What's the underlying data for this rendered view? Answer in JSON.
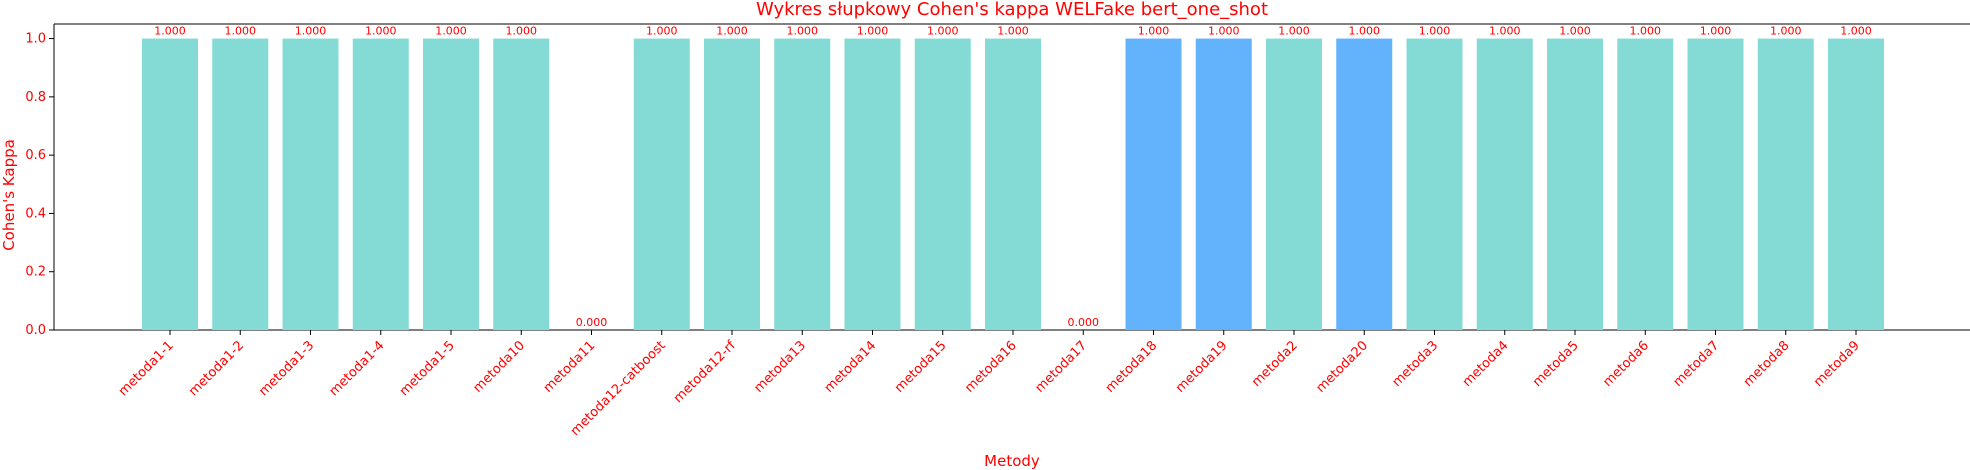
{
  "chart_data": {
    "type": "bar",
    "title": "Wykres słupkowy Cohen's kappa WELFake bert_one_shot",
    "xlabel": "Metody",
    "ylabel": "Cohen's Kappa",
    "ylim": [
      0,
      1.05
    ],
    "yticks": [
      0.0,
      0.2,
      0.4,
      0.6,
      0.8,
      1.0
    ],
    "ytick_labels": [
      "0.0",
      "0.2",
      "0.4",
      "0.6",
      "0.8",
      "1.0"
    ],
    "grid": false,
    "categories": [
      "metoda1-1",
      "metoda1-2",
      "metoda1-3",
      "metoda1-4",
      "metoda1-5",
      "metoda10",
      "metoda11",
      "metoda12-catboost",
      "metoda12-rf",
      "metoda13",
      "metoda14",
      "metoda15",
      "metoda16",
      "metoda17",
      "metoda18",
      "metoda19",
      "metoda2",
      "metoda20",
      "metoda3",
      "metoda4",
      "metoda5",
      "metoda6",
      "metoda7",
      "metoda8",
      "metoda9"
    ],
    "values": [
      1.0,
      1.0,
      1.0,
      1.0,
      1.0,
      1.0,
      0.0,
      1.0,
      1.0,
      1.0,
      1.0,
      1.0,
      1.0,
      0.0,
      1.0,
      1.0,
      1.0,
      1.0,
      1.0,
      1.0,
      1.0,
      1.0,
      1.0,
      1.0,
      1.0
    ],
    "value_labels": [
      "1.000",
      "1.000",
      "1.000",
      "1.000",
      "1.000",
      "1.000",
      "0.000",
      "1.000",
      "1.000",
      "1.000",
      "1.000",
      "1.000",
      "1.000",
      "0.000",
      "1.000",
      "1.000",
      "1.000",
      "1.000",
      "1.000",
      "1.000",
      "1.000",
      "1.000",
      "1.000",
      "1.000",
      "1.000"
    ],
    "bar_colors": [
      "#84dbd6",
      "#84dbd6",
      "#84dbd6",
      "#84dbd6",
      "#84dbd6",
      "#84dbd6",
      "#84dbd6",
      "#84dbd6",
      "#84dbd6",
      "#84dbd6",
      "#84dbd6",
      "#84dbd6",
      "#84dbd6",
      "#84dbd6",
      "#63b3fc",
      "#63b3fc",
      "#84dbd6",
      "#63b3fc",
      "#84dbd6",
      "#84dbd6",
      "#84dbd6",
      "#84dbd6",
      "#84dbd6",
      "#84dbd6",
      "#84dbd6"
    ],
    "colors": {
      "text": "#ff0000",
      "axis": "#000000",
      "bar_default": "#84dbd6",
      "bar_highlight": "#63b3fc"
    }
  }
}
